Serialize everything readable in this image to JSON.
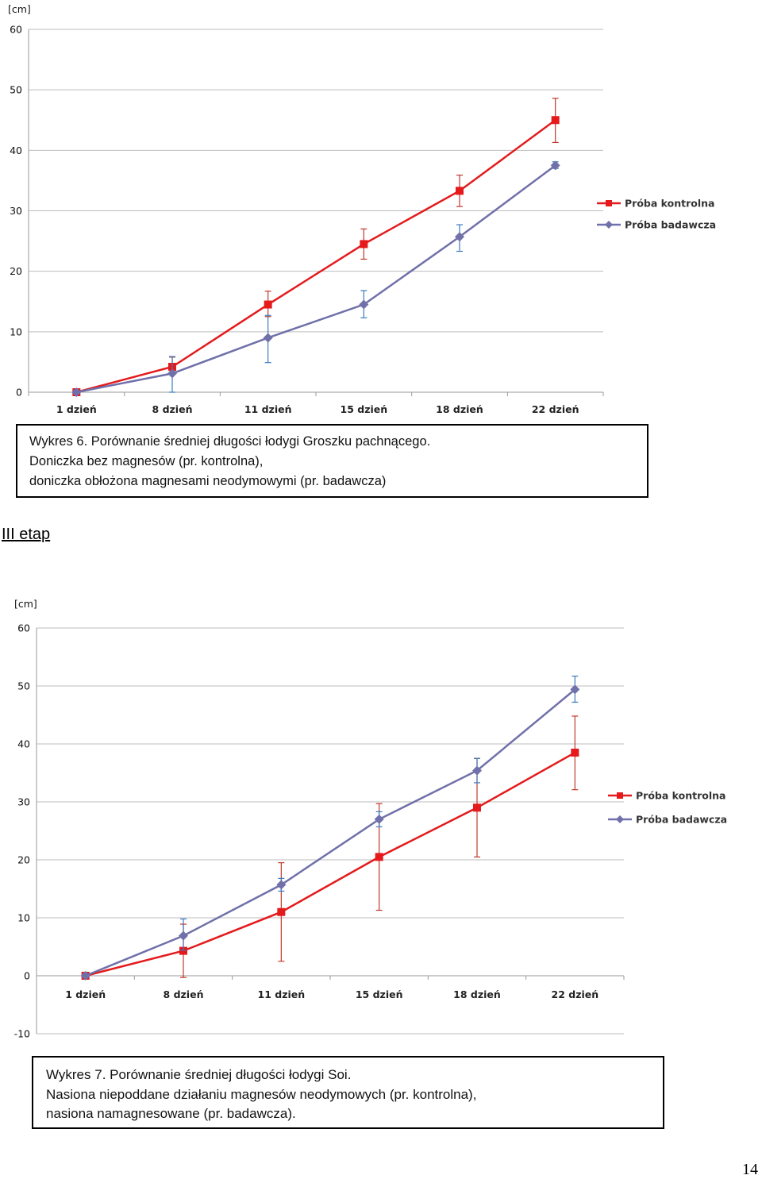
{
  "chart_data": [
    {
      "type": "line",
      "unit_label": "[cm]",
      "categories": [
        "1 dzień",
        "8 dzień",
        "11 dzień",
        "15 dzień",
        "18 dzień",
        "22 dzień"
      ],
      "ylim": [
        0,
        60
      ],
      "yticks": [
        0,
        10,
        20,
        30,
        40,
        50,
        60
      ],
      "grid": true,
      "legend_position": "right",
      "series": [
        {
          "name": "Próba kontrolna",
          "color": "#e41a1c",
          "marker": "square",
          "values": [
            0,
            4.2,
            14.5,
            24.5,
            33.3,
            45
          ],
          "err_low": [
            0,
            3.6,
            12.5,
            22,
            30.7,
            41.3
          ],
          "err_high": [
            0,
            5.8,
            16.7,
            27,
            35.9,
            48.6
          ],
          "err_color": "#c0392b"
        },
        {
          "name": "Próba badawcza",
          "color": "#7070aa",
          "marker": "diamond",
          "values": [
            0,
            3.1,
            9,
            14.5,
            25.7,
            37.5
          ],
          "err_low": [
            0,
            0,
            4.9,
            12.3,
            23.3,
            37
          ],
          "err_high": [
            0,
            5.9,
            12.7,
            16.8,
            27.7,
            38.1
          ],
          "err_color": "#3a7bbf"
        }
      ]
    },
    {
      "type": "line",
      "unit_label": "[cm]",
      "categories": [
        "1 dzień",
        "8 dzień",
        "11 dzień",
        "15 dzień",
        "18 dzień",
        "22 dzień"
      ],
      "ylim": [
        -10,
        60
      ],
      "yticks": [
        -10,
        0,
        10,
        20,
        30,
        40,
        50,
        60
      ],
      "grid": true,
      "legend_position": "right",
      "series": [
        {
          "name": "Próba kontrolna",
          "color": "#e41a1c",
          "marker": "square",
          "values": [
            0,
            4.3,
            11,
            20.5,
            29,
            38.5
          ],
          "err_low": [
            0,
            -0.3,
            2.5,
            11.3,
            20.5,
            32.1
          ],
          "err_high": [
            0,
            8.9,
            19.5,
            29.7,
            37.5,
            44.8
          ],
          "err_color": "#c0392b"
        },
        {
          "name": "Próba badawcza",
          "color": "#7070aa",
          "marker": "diamond",
          "values": [
            0,
            6.9,
            15.7,
            27,
            35.4,
            49.4
          ],
          "err_low": [
            0,
            4.4,
            14.6,
            25.7,
            33.3,
            47.2
          ],
          "err_high": [
            0,
            9.8,
            16.8,
            28.3,
            37.5,
            51.7
          ],
          "err_color": "#3a7bbf"
        }
      ]
    }
  ],
  "caption1": {
    "lines": [
      "Wykres 6. Porównanie średniej długości łodygi Groszku pachnącego.",
      "Doniczka bez magnesów (pr. kontrolna),",
      "doniczka obłożona magnesami neodymowymi (pr. badawcza)"
    ]
  },
  "section_heading": "III etap",
  "caption2": {
    "lines": [
      "Wykres 7. Porównanie średniej długości łodygi Soi.",
      "Nasiona niepoddane działaniu magnesów neodymowych (pr. kontrolna),",
      "nasiona namagnesowane (pr. badawcza)."
    ]
  },
  "page_number": "14"
}
